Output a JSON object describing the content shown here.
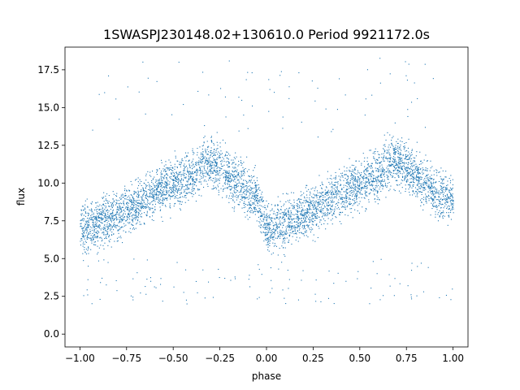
{
  "chart_data": {
    "type": "scatter",
    "title": "1SWASPJ230148.02+130610.0 Period 9921172.0s",
    "xlabel": "phase",
    "ylabel": "flux",
    "xlim": [
      -1.08,
      1.08
    ],
    "ylim": [
      -0.85,
      19.0
    ],
    "x_ticks": [
      -1.0,
      -0.75,
      -0.5,
      -0.25,
      0.0,
      0.25,
      0.5,
      0.75,
      1.0
    ],
    "x_tick_labels": [
      "−1.00",
      "−0.75",
      "−0.50",
      "−0.25",
      "0.00",
      "0.25",
      "0.50",
      "0.75",
      "1.00"
    ],
    "y_ticks": [
      0.0,
      2.5,
      5.0,
      7.5,
      10.0,
      12.5,
      15.0,
      17.5
    ],
    "y_tick_labels": [
      "0.0",
      "2.5",
      "5.0",
      "7.5",
      "10.0",
      "12.5",
      "15.0",
      "17.5"
    ],
    "grid": false,
    "marker_color": "#1f77b4",
    "series": [
      {
        "phase_profile": [
          {
            "x": -1.0,
            "y": 7.0
          },
          {
            "x": -0.9,
            "y": 7.3
          },
          {
            "x": -0.8,
            "y": 7.9
          },
          {
            "x": -0.7,
            "y": 8.6
          },
          {
            "x": -0.6,
            "y": 9.4
          },
          {
            "x": -0.5,
            "y": 10.0
          },
          {
            "x": -0.4,
            "y": 10.5
          },
          {
            "x": -0.33,
            "y": 11.5
          },
          {
            "x": -0.25,
            "y": 11.0
          },
          {
            "x": -0.15,
            "y": 10.0
          },
          {
            "x": -0.05,
            "y": 9.0
          },
          {
            "x": 0.0,
            "y": 7.0
          },
          {
            "x": 0.1,
            "y": 7.3
          },
          {
            "x": 0.2,
            "y": 7.9
          },
          {
            "x": 0.3,
            "y": 8.6
          },
          {
            "x": 0.4,
            "y": 9.4
          },
          {
            "x": 0.5,
            "y": 10.0
          },
          {
            "x": 0.6,
            "y": 10.5
          },
          {
            "x": 0.67,
            "y": 11.5
          },
          {
            "x": 0.75,
            "y": 11.0
          },
          {
            "x": 0.85,
            "y": 10.0
          },
          {
            "x": 0.95,
            "y": 9.0
          },
          {
            "x": 1.0,
            "y": 9.0
          }
        ],
        "scatter_halfwidth": 1.8,
        "outlier_low": [
          2.0,
          5.0
        ],
        "outlier_high": [
          13.0,
          18.5
        ]
      }
    ]
  }
}
